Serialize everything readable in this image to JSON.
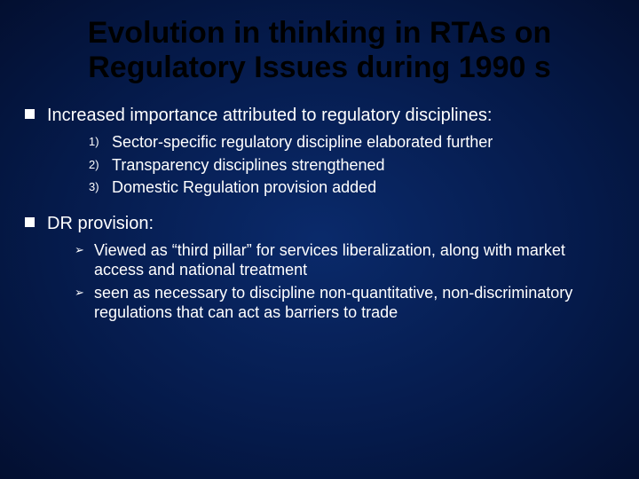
{
  "colors": {
    "background_center": "#0a2a6b",
    "background_mid": "#051a4a",
    "background_edge": "#030f30",
    "title_color": "#000000",
    "body_text_color": "#ffffff",
    "bullet_fill": "#ffffff"
  },
  "typography": {
    "title_fontsize": 34,
    "title_weight": "bold",
    "body_fontsize": 20,
    "sub_fontsize": 18,
    "sub_marker_fontsize": 13,
    "font_family": "Arial"
  },
  "title": "Evolution in thinking in RTAs on Regulatory Issues during 1990 s",
  "bullets": [
    {
      "text": "Increased importance attributed to regulatory disciplines:",
      "sub_style": "numbered",
      "subs": [
        "Sector-specific regulatory discipline elaborated further",
        "Transparency disciplines strengthened",
        "Domestic Regulation provision added"
      ]
    },
    {
      "text": "DR provision:",
      "sub_style": "arrow",
      "subs": [
        "Viewed as “third pillar” for services liberalization, along with market access and national treatment",
        "seen as necessary to discipline non-quantitative, non-discriminatory regulations that can act as barriers to trade"
      ]
    }
  ]
}
